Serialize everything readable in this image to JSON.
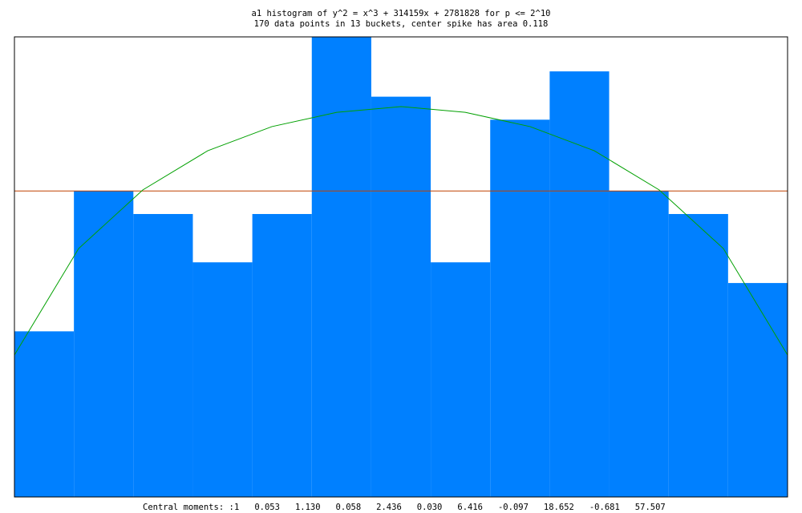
{
  "chart_data": {
    "type": "histogram",
    "title": "a1 histogram of y^2 = x^3 + 314159x + 2781828 for p <= 2^10",
    "subtitle": "170 data points in 13 buckets, center spike has area 0.118",
    "bins": [
      0,
      1,
      2,
      3,
      4,
      5,
      6,
      7,
      8,
      9,
      10,
      11,
      12,
      13
    ],
    "values": [
      7.2,
      13.3,
      12.3,
      10.2,
      12.3,
      20,
      17.4,
      10.2,
      16.4,
      18.5,
      13.3,
      12.3,
      9.3
    ],
    "color": "#0080ff",
    "xlim": [
      0,
      13
    ],
    "ylim": [
      0,
      20
    ],
    "reference_line": {
      "value": 13.3,
      "color": "#c04000"
    },
    "curve": {
      "color": "#00a000",
      "x": [
        0,
        1.08,
        2.16,
        3.25,
        4.33,
        5.42,
        6.5,
        7.58,
        8.67,
        9.75,
        10.84,
        11.92,
        13
      ],
      "values": [
        6.17,
        10.8,
        13.35,
        15.05,
        16.1,
        16.72,
        16.97,
        16.72,
        16.1,
        15.05,
        13.35,
        10.8,
        6.17
      ]
    },
    "footer": {
      "label": "Central moments: :",
      "moments": [
        "1",
        "0.053",
        "1.130",
        "0.058",
        "2.436",
        "0.030",
        "6.416",
        "-0.097",
        "18.652",
        "-0.681",
        "57.507"
      ]
    }
  }
}
